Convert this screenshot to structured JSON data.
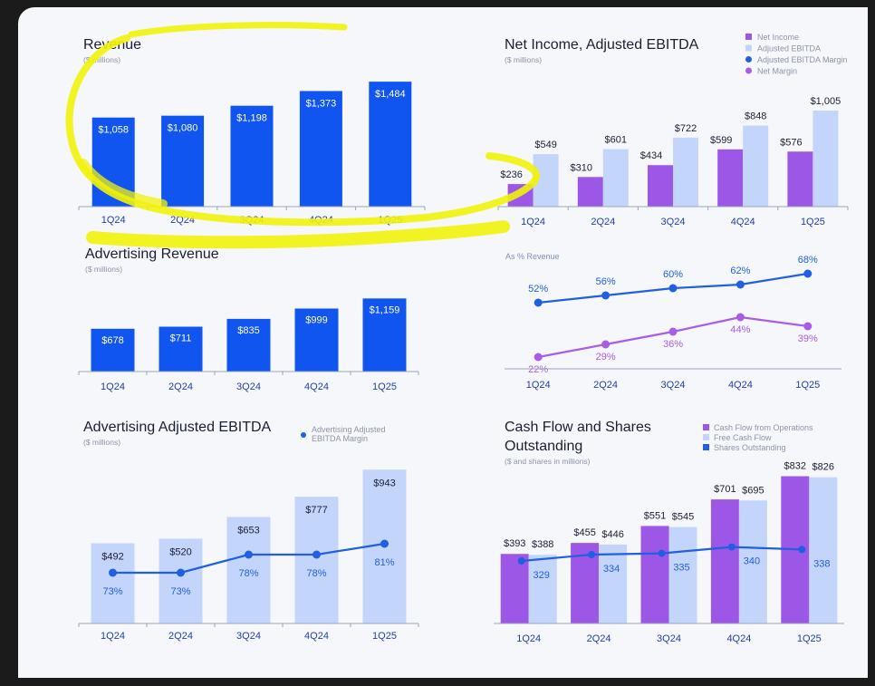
{
  "colors": {
    "blue": "#1155f1",
    "light_blue": "#c4d5fb",
    "purple": "#9d57e6",
    "line_blue": "#1f5fe0",
    "line_purple": "#a95ce6",
    "axis": "#9aa4b8",
    "tick_text": "#1f3fa8",
    "title": "#1b1e33",
    "subtitle": "#8c93a8",
    "annotation_highlight": "#f2f20b"
  },
  "chart_data": [
    {
      "id": "revenue",
      "type": "bar",
      "title": "Revenue",
      "subtitle": "($ millions)",
      "categories": [
        "1Q24",
        "2Q24",
        "3Q24",
        "4Q24",
        "1Q25"
      ],
      "series": [
        {
          "values": [
            1058,
            1080,
            1198,
            1373,
            1484
          ]
        }
      ],
      "data_labels": [
        "$1,058",
        "$1,080",
        "$1,198",
        "$1,373",
        "$1,484"
      ],
      "ylim": [
        0,
        1550
      ],
      "annotation": "yellow hand-drawn ellipse around chart"
    },
    {
      "id": "net_income",
      "type": "bar",
      "title": "Net Income, Adjusted EBITDA",
      "subtitle": "($ millions)",
      "categories": [
        "1Q24",
        "2Q24",
        "3Q24",
        "4Q24",
        "1Q25"
      ],
      "series": [
        {
          "name": "Net Income",
          "values": [
            236,
            310,
            434,
            599,
            576
          ],
          "labels": [
            "$236",
            "$310",
            "$434",
            "$599",
            "$576"
          ]
        },
        {
          "name": "Adjusted EBITDA",
          "values": [
            549,
            601,
            722,
            848,
            1005
          ],
          "labels": [
            "$549",
            "$601",
            "$722",
            "$848",
            "$1,005"
          ]
        }
      ],
      "legend": [
        "Net Income",
        "Adjusted EBITDA",
        "Adjusted EBITDA Margin",
        "Net Margin"
      ],
      "legend_position": "top-right",
      "ylim": [
        0,
        1100
      ]
    },
    {
      "id": "margins",
      "type": "line",
      "subtitle": "As % Revenue",
      "categories": [
        "1Q24",
        "2Q24",
        "3Q24",
        "4Q24",
        "1Q25"
      ],
      "series": [
        {
          "name": "Adjusted EBITDA Margin",
          "values": [
            52,
            56,
            60,
            62,
            68
          ],
          "labels": [
            "52%",
            "56%",
            "60%",
            "62%",
            "68%"
          ]
        },
        {
          "name": "Net Margin",
          "values": [
            22,
            29,
            36,
            44,
            39
          ],
          "labels": [
            "22%",
            "29%",
            "36%",
            "44%",
            "39%"
          ]
        }
      ],
      "ylim": [
        10,
        80
      ]
    },
    {
      "id": "advertising_revenue",
      "type": "bar",
      "title": "Advertising Revenue",
      "subtitle": "($ millions)",
      "categories": [
        "1Q24",
        "2Q24",
        "3Q24",
        "4Q24",
        "1Q25"
      ],
      "series": [
        {
          "values": [
            678,
            711,
            835,
            999,
            1159
          ]
        }
      ],
      "data_labels": [
        "$678",
        "$711",
        "$835",
        "$999",
        "$1,159"
      ],
      "ylim": [
        0,
        1250
      ]
    },
    {
      "id": "advertising_ebitda",
      "type": "bar",
      "title": "Advertising Adjusted EBITDA",
      "subtitle": "($ millions)",
      "categories": [
        "1Q24",
        "2Q24",
        "3Q24",
        "4Q24",
        "1Q25"
      ],
      "series": [
        {
          "values": [
            492,
            520,
            653,
            777,
            943
          ],
          "labels": [
            "$492",
            "$520",
            "$653",
            "$777",
            "$943"
          ]
        },
        {
          "name": "Advertising Adjusted EBITDA Margin",
          "type": "line",
          "values": [
            73,
            73,
            78,
            78,
            81
          ],
          "labels": [
            "73%",
            "73%",
            "78%",
            "78%",
            "81%"
          ]
        }
      ],
      "legend": [
        "Advertising Adjusted",
        "EBITDA Margin"
      ],
      "legend_position": "top-right",
      "ylim": [
        0,
        1000
      ]
    },
    {
      "id": "cash_flow",
      "type": "bar",
      "title": [
        "Cash Flow and Shares",
        "Outstanding"
      ],
      "subtitle": "($ and shares in millions)",
      "categories": [
        "1Q24",
        "2Q24",
        "3Q24",
        "4Q24",
        "1Q25"
      ],
      "series": [
        {
          "name": "Cash Flow from Operations",
          "values": [
            393,
            455,
            551,
            701,
            832
          ],
          "labels": [
            "$393",
            "$455",
            "$551",
            "$701",
            "$832"
          ]
        },
        {
          "name": "Free Cash Flow",
          "values": [
            388,
            446,
            545,
            695,
            826
          ],
          "labels": [
            "$388",
            "$446",
            "$545",
            "$695",
            "$826"
          ]
        },
        {
          "name": "Shares Outstanding",
          "type": "line",
          "values": [
            329,
            334,
            335,
            340,
            338
          ],
          "labels": [
            "329",
            "334",
            "335",
            "340",
            "338"
          ]
        }
      ],
      "legend": [
        "Cash Flow from Operations",
        "Free Cash Flow",
        "Shares Outstanding"
      ],
      "legend_position": "top-right",
      "ylim": [
        0,
        850
      ]
    }
  ]
}
